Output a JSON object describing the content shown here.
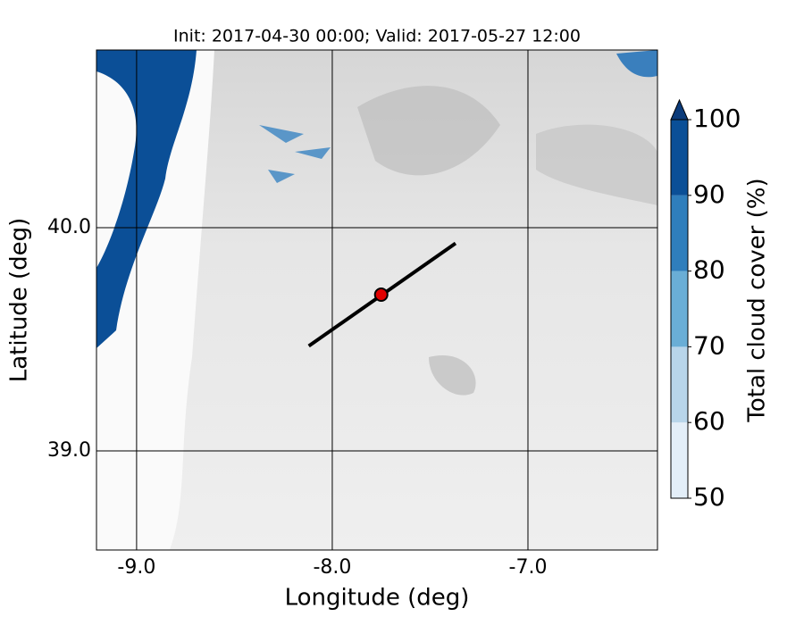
{
  "map": {
    "title": "Init: 2017-04-30 00:00; Valid: 2017-05-27 12:00",
    "xlabel": "Longitude (deg)",
    "ylabel": "Latitude (deg)",
    "xlim": [
      -9.205,
      -6.338
    ],
    "ylim": [
      38.556,
      40.796
    ],
    "xticks": [
      {
        "value": -9,
        "label": "-9.0"
      },
      {
        "value": -8,
        "label": "-8.0"
      },
      {
        "value": -7,
        "label": "-7.0"
      }
    ],
    "yticks": [
      {
        "value": 39,
        "label": "39.0"
      },
      {
        "value": 40,
        "label": "40.0"
      }
    ],
    "section_line": {
      "x": [
        -8.12,
        -7.37
      ],
      "y": [
        39.47,
        39.93
      ]
    },
    "point": {
      "x": -7.75,
      "y": 39.7,
      "color": "#e00000"
    },
    "colorbar": {
      "label": "Total cloud cover (%)",
      "levels": [
        50,
        60,
        70,
        80,
        90,
        100
      ],
      "colors": [
        "#e3eef8",
        "#b8d5ea",
        "#6aaed6",
        "#2f7ebc",
        "#0a4f97"
      ],
      "extend_color": "#0b3b7a"
    }
  }
}
